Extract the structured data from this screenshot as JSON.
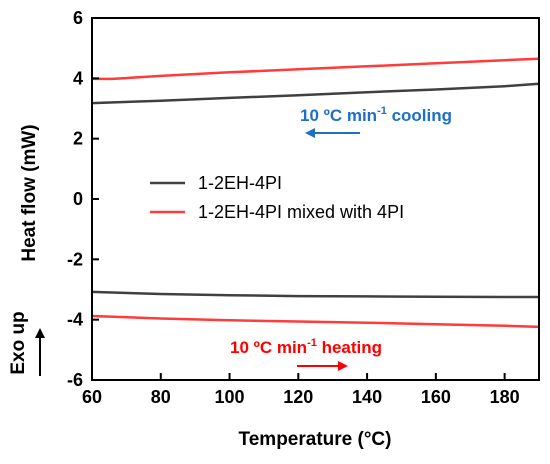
{
  "chart_data": {
    "type": "line",
    "xlabel": "Temperature (°C)",
    "ylabel": "Heat flow (mW)",
    "xlim": [
      60,
      190
    ],
    "ylim": [
      -6,
      6
    ],
    "xticks": [
      "60",
      "80",
      "100",
      "120",
      "140",
      "160",
      "180"
    ],
    "yticks": [
      "6",
      "4",
      "2",
      "0",
      "-2",
      "-4",
      "-6"
    ],
    "grid": false,
    "legend_position": "center-left",
    "side_label": "Exo up",
    "colors": {
      "black_series": "#404040",
      "red_series": "#ff3b3b",
      "cooling_text": "#1f6fc5",
      "heating_text": "#ff0000"
    },
    "series": [
      {
        "name": "1-2EH-4PI",
        "segment": "cooling",
        "color": "#404040",
        "x": [
          60,
          80,
          100,
          120,
          140,
          160,
          180,
          190
        ],
        "y": [
          3.18,
          3.26,
          3.35,
          3.44,
          3.54,
          3.63,
          3.74,
          3.82
        ]
      },
      {
        "name": "1-2EH-4PI mixed with 4PI",
        "segment": "cooling",
        "color": "#ff3b3b",
        "x": [
          60,
          66,
          80,
          100,
          120,
          140,
          160,
          180,
          190
        ],
        "y": [
          3.98,
          3.98,
          4.08,
          4.2,
          4.3,
          4.4,
          4.5,
          4.6,
          4.65
        ]
      },
      {
        "name": "1-2EH-4PI",
        "segment": "heating",
        "color": "#404040",
        "x": [
          60,
          80,
          100,
          120,
          140,
          160,
          180,
          190
        ],
        "y": [
          -3.08,
          -3.15,
          -3.19,
          -3.22,
          -3.23,
          -3.24,
          -3.25,
          -3.25
        ]
      },
      {
        "name": "1-2EH-4PI mixed with 4PI",
        "segment": "heating",
        "color": "#ff3b3b",
        "x": [
          60,
          80,
          100,
          120,
          140,
          160,
          180,
          190
        ],
        "y": [
          -3.88,
          -3.96,
          -4.02,
          -4.06,
          -4.1,
          -4.15,
          -4.2,
          -4.24
        ]
      }
    ],
    "legend": [
      {
        "label": "1-2EH-4PI",
        "color": "#404040"
      },
      {
        "label": "1-2EH-4PI mixed with 4PI",
        "color": "#ff3b3b"
      }
    ],
    "annotations": {
      "cooling": {
        "prefix": "10 ºC min",
        "sup": "-1",
        "suffix": " cooling",
        "color": "#1f6fc5",
        "arrow": "left"
      },
      "heating": {
        "prefix": "10 ºC min",
        "sup": "-1",
        "suffix": " heating",
        "color": "#ff0000",
        "arrow": "right"
      }
    }
  }
}
